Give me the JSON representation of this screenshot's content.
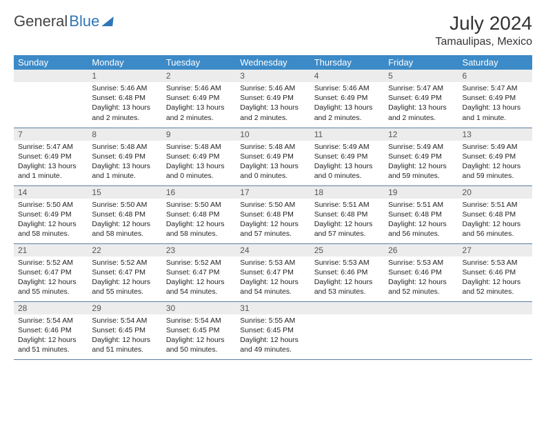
{
  "brand": {
    "part1": "General",
    "part2": "Blue"
  },
  "title": "July 2024",
  "location": "Tamaulipas, Mexico",
  "colors": {
    "header_bg": "#3c8ac7",
    "header_fg": "#ffffff",
    "daynum_bg": "#ececec",
    "daynum_fg": "#555555",
    "row_border": "#5a7da3",
    "text": "#222222",
    "brand_gray": "#444444",
    "brand_blue": "#2f76b8"
  },
  "weekdays": [
    "Sunday",
    "Monday",
    "Tuesday",
    "Wednesday",
    "Thursday",
    "Friday",
    "Saturday"
  ],
  "layout": {
    "first_weekday_index": 1,
    "days_in_month": 31,
    "weeks": 5
  },
  "days": [
    {
      "n": 1,
      "sunrise": "5:46 AM",
      "sunset": "6:48 PM",
      "daylight": "13 hours and 2 minutes."
    },
    {
      "n": 2,
      "sunrise": "5:46 AM",
      "sunset": "6:49 PM",
      "daylight": "13 hours and 2 minutes."
    },
    {
      "n": 3,
      "sunrise": "5:46 AM",
      "sunset": "6:49 PM",
      "daylight": "13 hours and 2 minutes."
    },
    {
      "n": 4,
      "sunrise": "5:46 AM",
      "sunset": "6:49 PM",
      "daylight": "13 hours and 2 minutes."
    },
    {
      "n": 5,
      "sunrise": "5:47 AM",
      "sunset": "6:49 PM",
      "daylight": "13 hours and 2 minutes."
    },
    {
      "n": 6,
      "sunrise": "5:47 AM",
      "sunset": "6:49 PM",
      "daylight": "13 hours and 1 minute."
    },
    {
      "n": 7,
      "sunrise": "5:47 AM",
      "sunset": "6:49 PM",
      "daylight": "13 hours and 1 minute."
    },
    {
      "n": 8,
      "sunrise": "5:48 AM",
      "sunset": "6:49 PM",
      "daylight": "13 hours and 1 minute."
    },
    {
      "n": 9,
      "sunrise": "5:48 AM",
      "sunset": "6:49 PM",
      "daylight": "13 hours and 0 minutes."
    },
    {
      "n": 10,
      "sunrise": "5:48 AM",
      "sunset": "6:49 PM",
      "daylight": "13 hours and 0 minutes."
    },
    {
      "n": 11,
      "sunrise": "5:49 AM",
      "sunset": "6:49 PM",
      "daylight": "13 hours and 0 minutes."
    },
    {
      "n": 12,
      "sunrise": "5:49 AM",
      "sunset": "6:49 PM",
      "daylight": "12 hours and 59 minutes."
    },
    {
      "n": 13,
      "sunrise": "5:49 AM",
      "sunset": "6:49 PM",
      "daylight": "12 hours and 59 minutes."
    },
    {
      "n": 14,
      "sunrise": "5:50 AM",
      "sunset": "6:49 PM",
      "daylight": "12 hours and 58 minutes."
    },
    {
      "n": 15,
      "sunrise": "5:50 AM",
      "sunset": "6:48 PM",
      "daylight": "12 hours and 58 minutes."
    },
    {
      "n": 16,
      "sunrise": "5:50 AM",
      "sunset": "6:48 PM",
      "daylight": "12 hours and 58 minutes."
    },
    {
      "n": 17,
      "sunrise": "5:50 AM",
      "sunset": "6:48 PM",
      "daylight": "12 hours and 57 minutes."
    },
    {
      "n": 18,
      "sunrise": "5:51 AM",
      "sunset": "6:48 PM",
      "daylight": "12 hours and 57 minutes."
    },
    {
      "n": 19,
      "sunrise": "5:51 AM",
      "sunset": "6:48 PM",
      "daylight": "12 hours and 56 minutes."
    },
    {
      "n": 20,
      "sunrise": "5:51 AM",
      "sunset": "6:48 PM",
      "daylight": "12 hours and 56 minutes."
    },
    {
      "n": 21,
      "sunrise": "5:52 AM",
      "sunset": "6:47 PM",
      "daylight": "12 hours and 55 minutes."
    },
    {
      "n": 22,
      "sunrise": "5:52 AM",
      "sunset": "6:47 PM",
      "daylight": "12 hours and 55 minutes."
    },
    {
      "n": 23,
      "sunrise": "5:52 AM",
      "sunset": "6:47 PM",
      "daylight": "12 hours and 54 minutes."
    },
    {
      "n": 24,
      "sunrise": "5:53 AM",
      "sunset": "6:47 PM",
      "daylight": "12 hours and 54 minutes."
    },
    {
      "n": 25,
      "sunrise": "5:53 AM",
      "sunset": "6:46 PM",
      "daylight": "12 hours and 53 minutes."
    },
    {
      "n": 26,
      "sunrise": "5:53 AM",
      "sunset": "6:46 PM",
      "daylight": "12 hours and 52 minutes."
    },
    {
      "n": 27,
      "sunrise": "5:53 AM",
      "sunset": "6:46 PM",
      "daylight": "12 hours and 52 minutes."
    },
    {
      "n": 28,
      "sunrise": "5:54 AM",
      "sunset": "6:46 PM",
      "daylight": "12 hours and 51 minutes."
    },
    {
      "n": 29,
      "sunrise": "5:54 AM",
      "sunset": "6:45 PM",
      "daylight": "12 hours and 51 minutes."
    },
    {
      "n": 30,
      "sunrise": "5:54 AM",
      "sunset": "6:45 PM",
      "daylight": "12 hours and 50 minutes."
    },
    {
      "n": 31,
      "sunrise": "5:55 AM",
      "sunset": "6:45 PM",
      "daylight": "12 hours and 49 minutes."
    }
  ],
  "labels": {
    "sunrise": "Sunrise:",
    "sunset": "Sunset:",
    "daylight": "Daylight:"
  }
}
